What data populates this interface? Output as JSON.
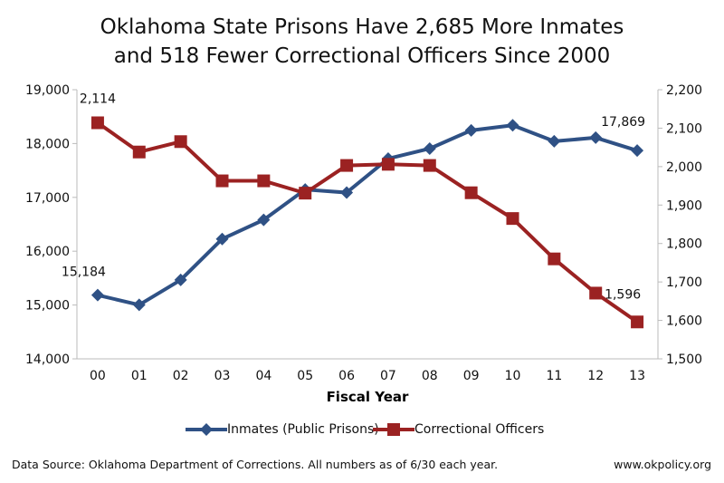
{
  "chart_data": {
    "type": "line",
    "title": "Oklahoma State Prisons Have 2,685 More Inmates and 518 Fewer Correctional Officers Since 2000",
    "title_lines": [
      "Oklahoma State Prisons Have 2,685 More Inmates",
      "and 518 Fewer Correctional Officers Since 2000"
    ],
    "xlabel": "Fiscal Year",
    "categories": [
      "00",
      "01",
      "02",
      "03",
      "04",
      "05",
      "06",
      "07",
      "08",
      "09",
      "10",
      "11",
      "12",
      "13"
    ],
    "y_left": {
      "lim": [
        14000,
        19000
      ],
      "ticks": [
        "14,000",
        "15,000",
        "16,000",
        "17,000",
        "18,000",
        "19,000"
      ]
    },
    "y_right": {
      "lim": [
        1500,
        2200
      ],
      "ticks": [
        "1,500",
        "1,600",
        "1,700",
        "1,800",
        "1,900",
        "2,000",
        "2,100",
        "2,200"
      ]
    },
    "grid": false,
    "legend_position": "bottom",
    "series": [
      {
        "name": "Inmates (Public Prisons)",
        "axis": "left",
        "color": "#2f5185",
        "marker": "diamond",
        "values": [
          15184,
          15003,
          15466,
          16227,
          16582,
          17145,
          17089,
          17720,
          17906,
          18245,
          18340,
          18042,
          18109,
          17869
        ],
        "data_labels": {
          "first": "15,184",
          "last": "17,869"
        }
      },
      {
        "name": "Correctional Officers",
        "axis": "right",
        "color": "#9b2222",
        "marker": "square",
        "values": [
          2114,
          2038,
          2065,
          1963,
          1963,
          1931,
          2003,
          2006,
          2003,
          1932,
          1865,
          1760,
          1671,
          1596
        ],
        "data_labels": {
          "first": "2,114",
          "last": "1,596"
        }
      }
    ]
  },
  "footer": {
    "source": "Data Source: Oklahoma Department of Corrections. All numbers as of 6/30 each year.",
    "website": "www.okpolicy.org"
  }
}
